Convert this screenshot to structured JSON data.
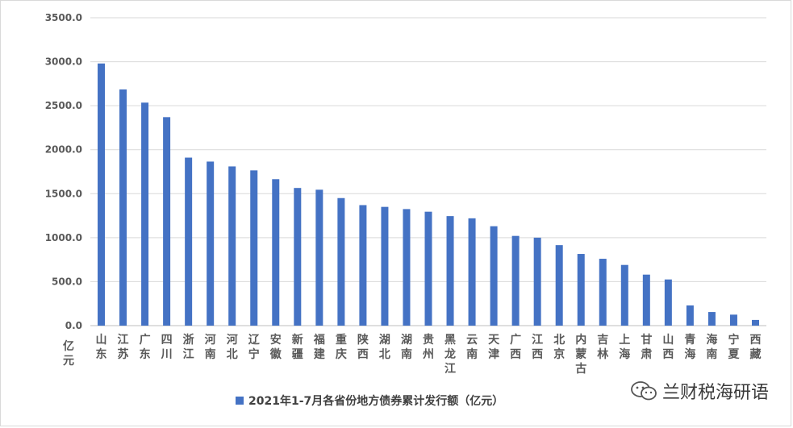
{
  "chart_data": {
    "type": "bar",
    "categories": [
      "山东",
      "江苏",
      "广东",
      "四川",
      "浙江",
      "河南",
      "河北",
      "辽宁",
      "安徽",
      "新疆",
      "福建",
      "重庆",
      "陕西",
      "湖北",
      "湖南",
      "贵州",
      "黑龙江",
      "云南",
      "天津",
      "广西",
      "江西",
      "北京",
      "内蒙古",
      "吉林",
      "上海",
      "甘肃",
      "山西",
      "青海",
      "海南",
      "宁夏",
      "西藏"
    ],
    "series": [
      {
        "name": "2021年1-7月各省份地方债券累计发行额（亿元）",
        "color": "#4472c4",
        "values": [
          2980,
          2685,
          2535,
          2370,
          1910,
          1865,
          1810,
          1765,
          1665,
          1565,
          1545,
          1450,
          1370,
          1350,
          1325,
          1295,
          1245,
          1220,
          1130,
          1020,
          1000,
          915,
          815,
          760,
          690,
          580,
          525,
          230,
          155,
          125,
          65
        ]
      }
    ],
    "yunit": "亿元",
    "ylim": [
      0,
      3500
    ],
    "yticks": [
      "0.0",
      "500.0",
      "1000.0",
      "1500.0",
      "2000.0",
      "2500.0",
      "3000.0",
      "3500.0"
    ],
    "grid": true,
    "legend_position": "bottom"
  },
  "watermark": {
    "text": "兰财税海研语",
    "icon": "wechat-icon"
  }
}
